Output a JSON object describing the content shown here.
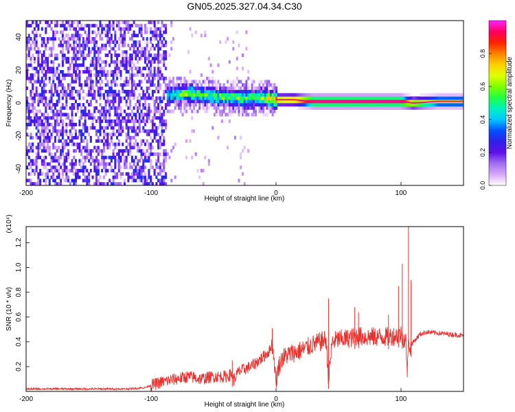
{
  "title": "GN05.2025.327.04.34.C30",
  "chart_data": [
    {
      "type": "heatmap",
      "title": "GN05.2025.327.04.34.C30",
      "xlabel": "Height of straight line (km)",
      "ylabel": "Frequency (Hz)",
      "xlim": [
        -200,
        150
      ],
      "ylim": [
        -50,
        50
      ],
      "xticks": [
        -200,
        -100,
        0,
        100
      ],
      "yticks": [
        -40,
        -20,
        0,
        20,
        40
      ],
      "colorbar": {
        "label": "Normalized spectral amplitude",
        "range": [
          0,
          1
        ],
        "ticks": [
          0.0,
          0.2,
          0.4,
          0.6,
          0.8
        ],
        "tick_labels": [
          "0.0",
          "0.2",
          "0.4",
          "0.6",
          "0.8"
        ],
        "colormap": [
          "#ffffff",
          "#d8a8f8",
          "#a070f0",
          "#6010e8",
          "#3020e8",
          "#0050ff",
          "#00c8ff",
          "#00f0c0",
          "#20ff40",
          "#80ff00",
          "#e0ff00",
          "#ffd000",
          "#ff8000",
          "#ff2000",
          "#ff0060",
          "#ff20ff"
        ]
      },
      "ridge": [
        {
          "x": -87,
          "f": 5,
          "amp": 0.45
        },
        {
          "x": -70,
          "f": 6,
          "amp": 0.55
        },
        {
          "x": -50,
          "f": 4,
          "amp": 0.5
        },
        {
          "x": -30,
          "f": 3,
          "amp": 0.5
        },
        {
          "x": -10,
          "f": 3,
          "amp": 0.55
        },
        {
          "x": 0,
          "f": 2,
          "amp": 0.75
        },
        {
          "x": 15,
          "f": 2,
          "amp": 0.8
        },
        {
          "x": 30,
          "f": 1,
          "amp": 0.95
        },
        {
          "x": 50,
          "f": 1,
          "amp": 0.95
        },
        {
          "x": 70,
          "f": 1,
          "amp": 0.95
        },
        {
          "x": 100,
          "f": 1,
          "amp": 0.95
        },
        {
          "x": 110,
          "f": 0,
          "amp": 0.7
        },
        {
          "x": 130,
          "f": 1,
          "amp": 0.65
        },
        {
          "x": 150,
          "f": 1,
          "amp": 0.65
        }
      ],
      "noise_region": {
        "x_range": [
          -200,
          -88
        ],
        "f_range": [
          -50,
          50
        ],
        "amp_range": [
          0.05,
          0.3
        ]
      }
    },
    {
      "type": "line",
      "xlabel": "Height of straight line (km)",
      "ylabel": "SNR (10 * v/v)",
      "y_multiplier": "(x10⁴)",
      "xlim": [
        -200,
        150
      ],
      "ylim": [
        0,
        1.33
      ],
      "xticks": [
        -200,
        -100,
        0,
        100
      ],
      "yticks": [
        0.2,
        0.4,
        0.6,
        0.8,
        1.0,
        1.2
      ],
      "ytick_labels": [
        "0.2",
        "0.4",
        "0.6",
        "0.8",
        "1.0",
        "1.2"
      ],
      "color": "#e8302c",
      "series": [
        {
          "x": [
            -200,
            -180,
            -160,
            -140,
            -120,
            -105,
            -100,
            -90,
            -80,
            -70,
            -60,
            -50,
            -40,
            -35,
            -34,
            -30,
            -20,
            -10,
            -5,
            -3,
            0,
            2,
            5,
            10,
            20,
            30,
            40,
            42,
            45,
            50,
            60,
            65,
            70,
            80,
            90,
            95,
            100,
            104,
            105,
            106,
            107,
            108,
            110,
            115,
            120,
            130,
            140,
            150
          ],
          "values": [
            0.02,
            0.02,
            0.02,
            0.02,
            0.02,
            0.03,
            0.05,
            0.08,
            0.1,
            0.12,
            0.1,
            0.12,
            0.12,
            0.14,
            0.09,
            0.16,
            0.2,
            0.28,
            0.33,
            0.4,
            0.08,
            0.2,
            0.27,
            0.3,
            0.33,
            0.38,
            0.42,
            0.1,
            0.4,
            0.42,
            0.43,
            0.45,
            0.44,
            0.44,
            0.44,
            0.45,
            0.46,
            0.4,
            0.1,
            0.5,
            0.3,
            0.38,
            0.4,
            0.46,
            0.48,
            0.47,
            0.46,
            0.45
          ],
          "spikes": [
            {
              "x": -35,
              "y": 0.25
            },
            {
              "x": -3,
              "y": 0.51
            },
            {
              "x": 42,
              "y": 0.75
            },
            {
              "x": 63,
              "y": 0.68
            },
            {
              "x": 66,
              "y": 0.64
            },
            {
              "x": 90,
              "y": 0.62
            },
            {
              "x": 98,
              "y": 0.85
            },
            {
              "x": 101,
              "y": 1.03
            },
            {
              "x": 106,
              "y": 1.33
            },
            {
              "x": 108,
              "y": 0.9
            }
          ]
        }
      ]
    }
  ]
}
